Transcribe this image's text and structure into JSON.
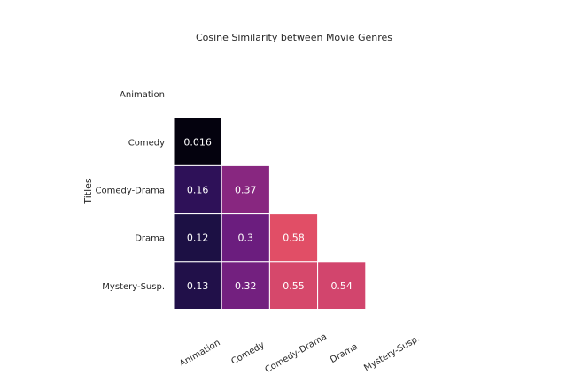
{
  "chart_data": {
    "type": "heatmap",
    "title": "Cosine Similarity between Movie Genres",
    "ylabel": "Titles",
    "xlabel": "",
    "rows": [
      "Animation",
      "Comedy",
      "Comedy-Drama",
      "Drama",
      "Mystery-Susp."
    ],
    "columns": [
      "Animation",
      "Comedy",
      "Comedy-Drama",
      "Drama",
      "Mystery-Susp."
    ],
    "mask": "upper-triangle-including-diagonal",
    "colormap": "magma",
    "values": [
      [
        null,
        null,
        null,
        null,
        null
      ],
      [
        0.016,
        null,
        null,
        null,
        null
      ],
      [
        0.16,
        0.37,
        null,
        null,
        null
      ],
      [
        0.12,
        0.3,
        0.58,
        null,
        null
      ],
      [
        0.13,
        0.32,
        0.55,
        0.54,
        null
      ]
    ],
    "labels": [
      [
        null,
        null,
        null,
        null,
        null
      ],
      [
        "0.016",
        null,
        null,
        null,
        null
      ],
      [
        "0.16",
        "0.37",
        null,
        null,
        null
      ],
      [
        "0.12",
        "0.3",
        "0.58",
        null,
        null
      ],
      [
        "0.13",
        "0.32",
        "0.55",
        "0.54",
        null
      ]
    ],
    "color_range": [
      0.016,
      0.58
    ],
    "cell_border_color": "#ffffff",
    "grid": false,
    "colorbar": false
  }
}
